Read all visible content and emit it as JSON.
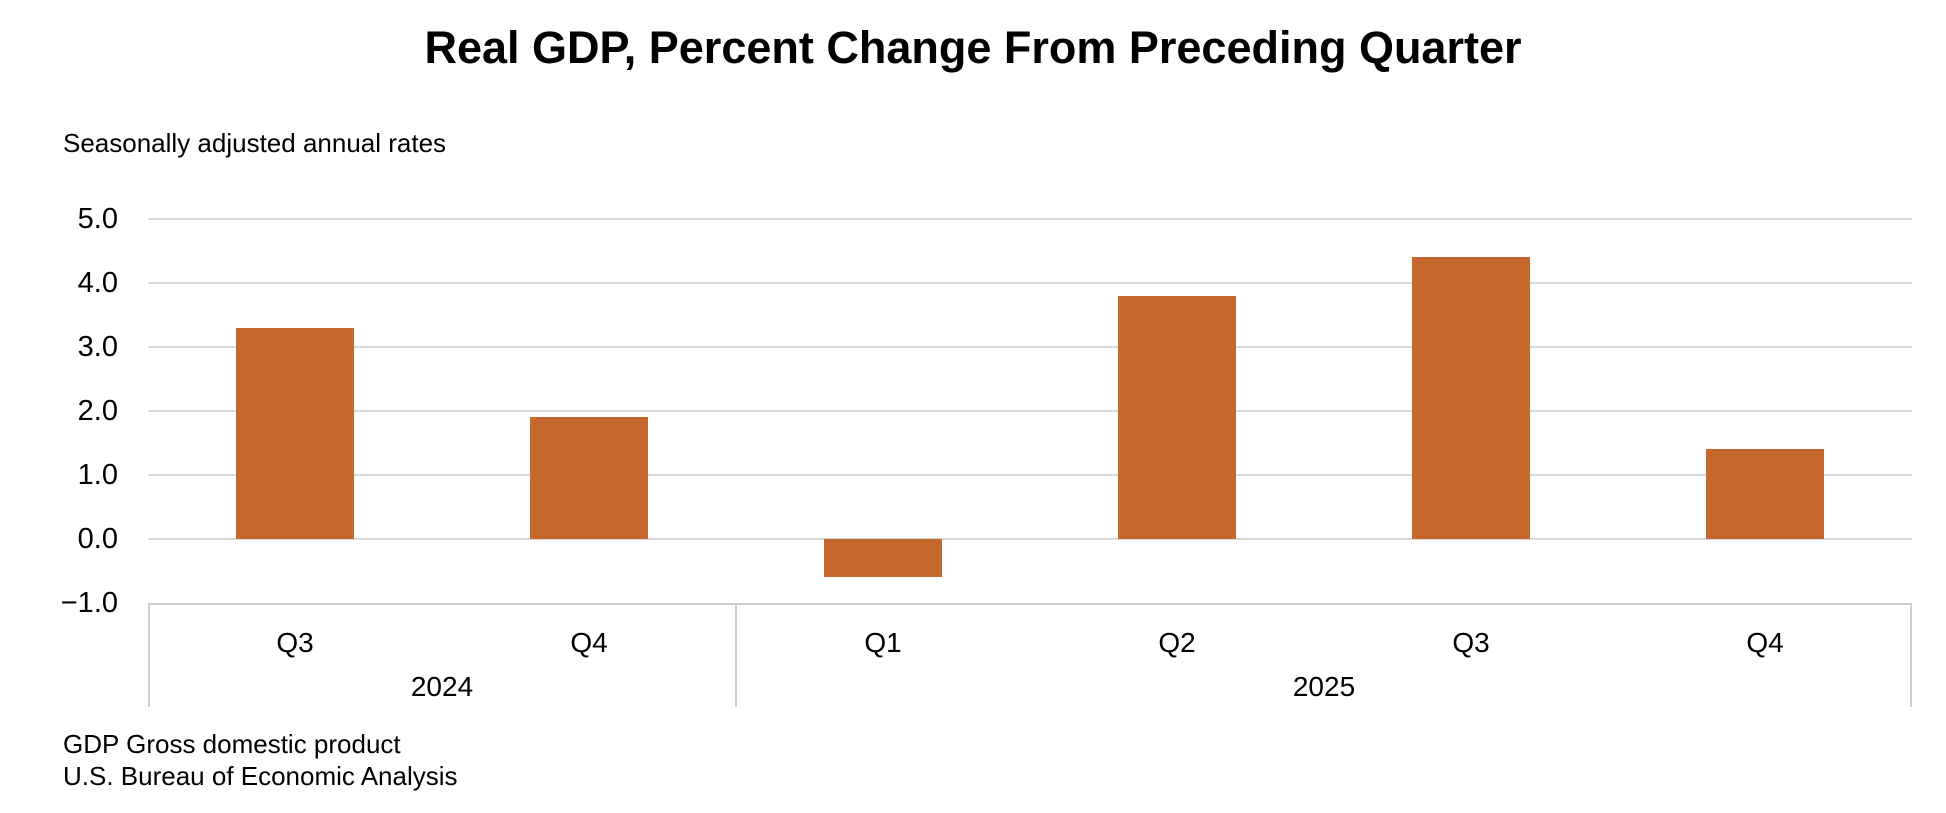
{
  "chart_data": {
    "type": "bar",
    "title": "Real GDP, Percent Change From Preceding Quarter",
    "subtitle": "Seasonally adjusted annual rates",
    "categories": [
      "Q3",
      "Q4",
      "Q1",
      "Q2",
      "Q3",
      "Q4"
    ],
    "year_groups": [
      {
        "label": "2024",
        "span": 2
      },
      {
        "label": "2025",
        "span": 4
      }
    ],
    "values": [
      3.3,
      1.9,
      -0.6,
      3.8,
      4.4,
      1.4
    ],
    "ylim": [
      -1.0,
      5.0
    ],
    "ytick_step": 1.0,
    "yticks": [
      {
        "value": 5.0,
        "label": "5.0"
      },
      {
        "value": 4.0,
        "label": "4.0"
      },
      {
        "value": 3.0,
        "label": "3.0"
      },
      {
        "value": 2.0,
        "label": "2.0"
      },
      {
        "value": 1.0,
        "label": "1.0"
      },
      {
        "value": 0.0,
        "label": "0.0"
      },
      {
        "value": -1.0,
        "label": "−1.0"
      }
    ],
    "grid": true,
    "legend_position": "none",
    "bar_color": "#C6682D",
    "gridline_color": "#D9D9D9",
    "axis_line_color": "#CFCFCF",
    "text_color": "#000000"
  },
  "footer": {
    "line1": "GDP Gross domestic product",
    "line2": "U.S. Bureau of Economic Analysis"
  }
}
